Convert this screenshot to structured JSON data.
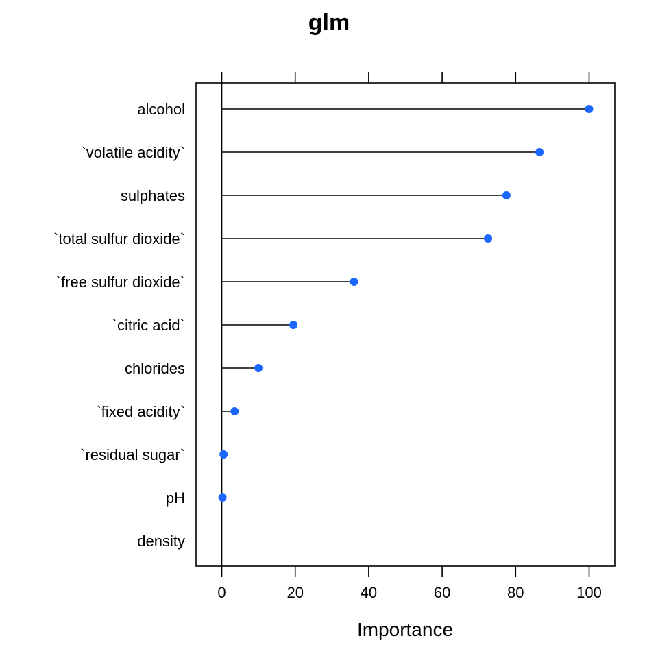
{
  "chart_data": {
    "type": "dot",
    "title": "glm",
    "xlabel": "Importance",
    "ylabel": "",
    "xlim": [
      -7,
      107
    ],
    "xticks": [
      0,
      20,
      40,
      60,
      80,
      100
    ],
    "grid": false,
    "point_color": "#1a66ff",
    "categories": [
      "alcohol",
      "`volatile acidity`",
      "sulphates",
      "`total sulfur dioxide`",
      "`free sulfur dioxide`",
      "`citric acid`",
      "chlorides",
      "`fixed acidity`",
      "`residual sugar`",
      "pH",
      "density"
    ],
    "values": [
      100,
      86.5,
      77.5,
      72.5,
      36,
      19.5,
      10,
      3.5,
      0.5,
      0.2,
      0
    ]
  }
}
